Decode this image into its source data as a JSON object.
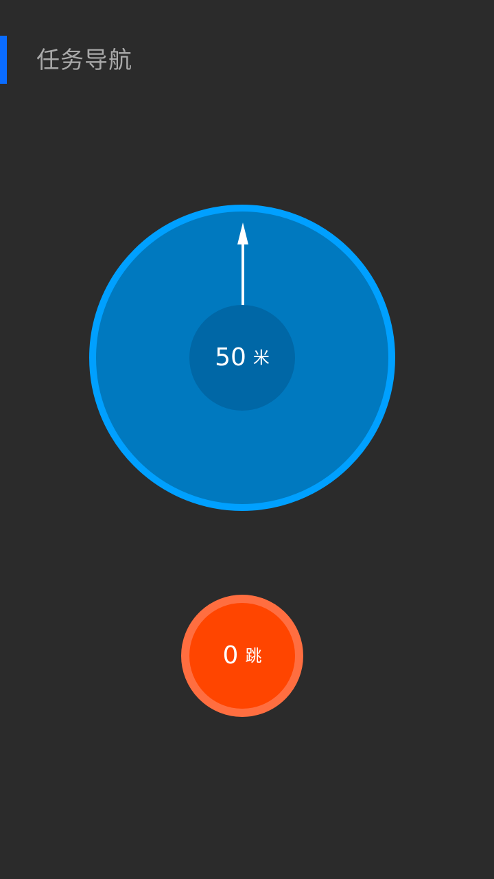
{
  "header": {
    "title": "任务导航",
    "accent_color": "#0a6cff"
  },
  "navigation": {
    "direction_icon": "up-arrow-icon",
    "distance_value": "50",
    "distance_unit": "米",
    "ring_color": "#00a0ff",
    "disc_color": "#0079bf",
    "core_color": "#0067a6"
  },
  "jump_button": {
    "count": "0",
    "unit": "跳",
    "ring_color": "#ff6e40",
    "fill_color": "#ff4500"
  },
  "colors": {
    "background": "#2b2b2b",
    "title_text": "#a9a9a9",
    "foreground": "#ffffff"
  }
}
